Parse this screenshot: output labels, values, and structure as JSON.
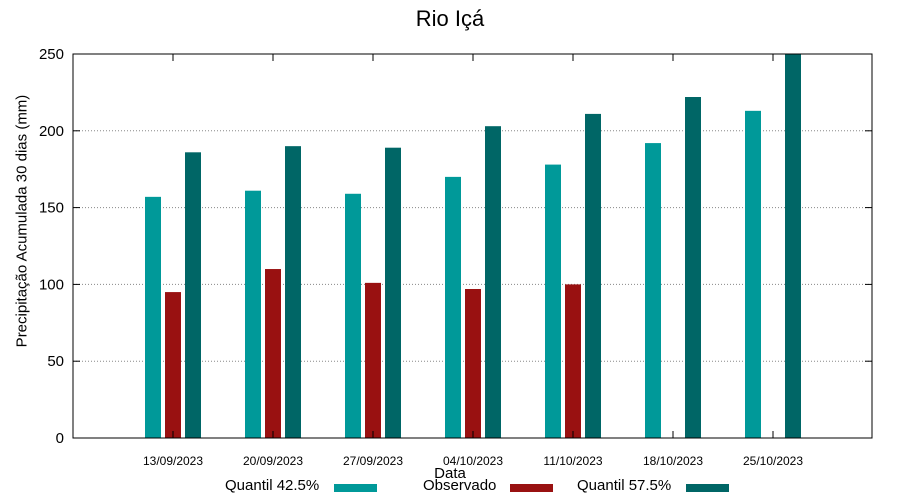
{
  "chart_data": {
    "type": "bar",
    "title": "Rio Içá",
    "xlabel": "Data",
    "ylabel": "Precipitação Acumulada 30 dias (mm)",
    "ylim": [
      0,
      250
    ],
    "yticks": [
      0,
      50,
      100,
      150,
      200,
      250
    ],
    "grid": true,
    "legend_position": "bottom",
    "categories": [
      "13/09/2023",
      "20/09/2023",
      "27/09/2023",
      "04/10/2023",
      "11/10/2023",
      "18/10/2023",
      "25/10/2023"
    ],
    "series": [
      {
        "name": "Quantil 42.5%",
        "color": "#009999",
        "values": [
          157,
          161,
          159,
          170,
          178,
          192,
          213
        ]
      },
      {
        "name": "Observado",
        "color": "#991111",
        "values": [
          95,
          110,
          101,
          97,
          100,
          null,
          null
        ]
      },
      {
        "name": "Quantil 57.5%",
        "color": "#006666",
        "values": [
          186,
          190,
          189,
          203,
          211,
          222,
          250
        ]
      }
    ]
  }
}
